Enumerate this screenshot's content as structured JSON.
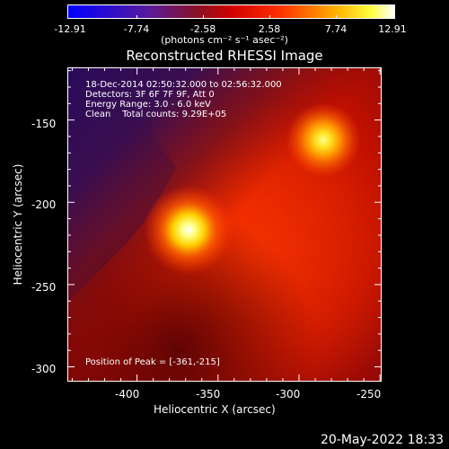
{
  "colorbar": {
    "ticks": [
      "-12.91",
      "-7.74",
      "-2.58",
      "2.58",
      "7.74",
      "12.91"
    ],
    "units": "(photons cm⁻² s⁻¹ asec⁻²)"
  },
  "title": "Reconstructed RHESSI Image",
  "info": {
    "time_range": "18-Dec-2014 02:50:32.000 to 02:56:32.000",
    "detectors": "Detectors: 3F 6F 7F 9F, Att 0",
    "energy": "Energy Range: 3.0 - 6.0 keV",
    "clean": "Clean    Total counts: 9.29E+05",
    "peak": "Position of Peak = [-361,-215]"
  },
  "axes": {
    "xlabel": "Heliocentric X (arcsec)",
    "ylabel": "Heliocentric Y (arcsec)",
    "xticks": [
      "-400",
      "-350",
      "-300",
      "-250"
    ],
    "yticks": [
      "-150",
      "-200",
      "-250",
      "-300"
    ]
  },
  "timestamp": "20-May-2022 18:33",
  "chart_data": {
    "type": "heatmap",
    "title": "Reconstructed RHESSI Image",
    "xlabel": "Heliocentric X (arcsec)",
    "ylabel": "Heliocentric Y (arcsec)",
    "xlim": [
      -443,
      -249
    ],
    "ylim": [
      -309,
      -118
    ],
    "clim": [
      -12.91,
      12.91
    ],
    "colormap": "hot-blue (blue-purple-red-orange-yellow-white)",
    "sources": [
      {
        "x": -361,
        "y": -215,
        "peak": "brightest"
      },
      {
        "x": -285,
        "y": -162,
        "peak": "secondary"
      }
    ],
    "peak_position": [
      -361,
      -215
    ]
  }
}
